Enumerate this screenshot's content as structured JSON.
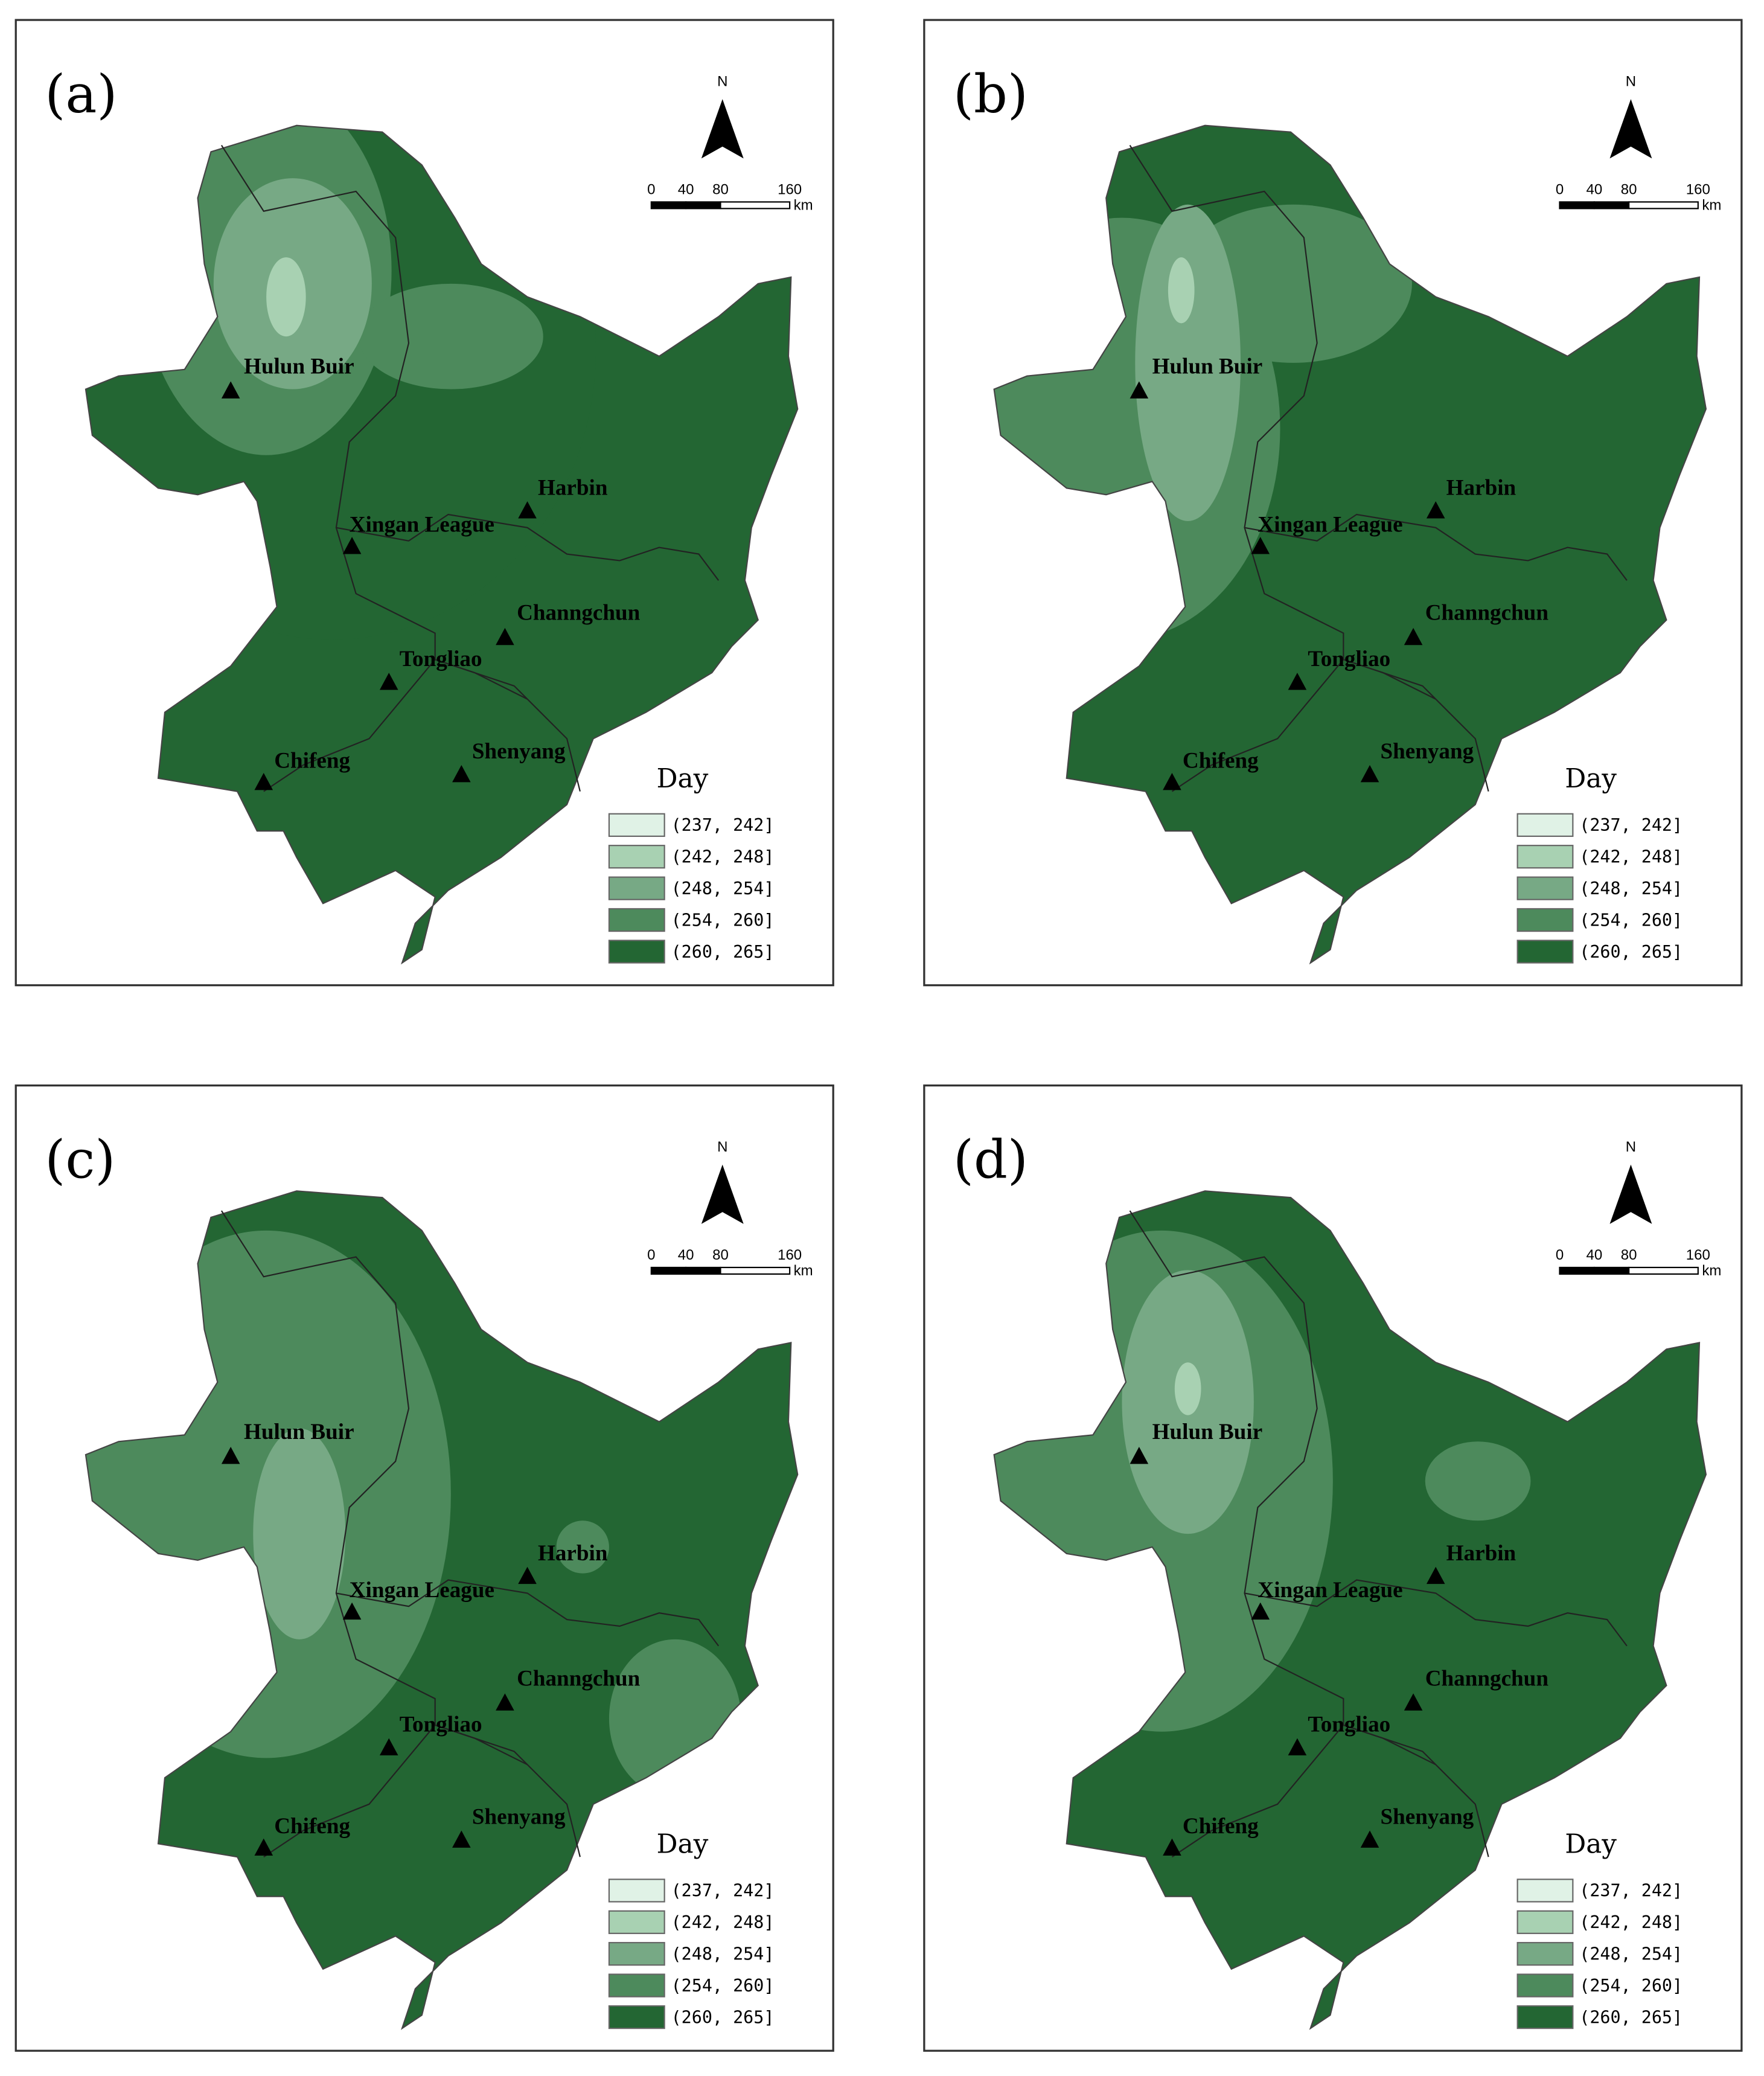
{
  "panels": [
    {
      "label": "(a)"
    },
    {
      "label": "(b)"
    },
    {
      "label": "(c)"
    },
    {
      "label": "(d)"
    }
  ],
  "north": "N",
  "scale": {
    "ticks": [
      0,
      40,
      80,
      160
    ],
    "unit": "km"
  },
  "cities": [
    "Hulun Buir",
    "Xingan League",
    "Harbin",
    "Channgchun",
    "Tongliao",
    "Chifeng",
    "Shenyang"
  ],
  "legend": {
    "title": "Day",
    "items": [
      {
        "label": "(237, 242]",
        "color": "#e0f2e6"
      },
      {
        "label": "(242, 248]",
        "color": "#a8d1b2"
      },
      {
        "label": "(248, 254]",
        "color": "#77a985"
      },
      {
        "label": "(254, 260]",
        "color": "#4d8a5c"
      },
      {
        "label": "(260, 265]",
        "color": "#236633"
      }
    ]
  }
}
